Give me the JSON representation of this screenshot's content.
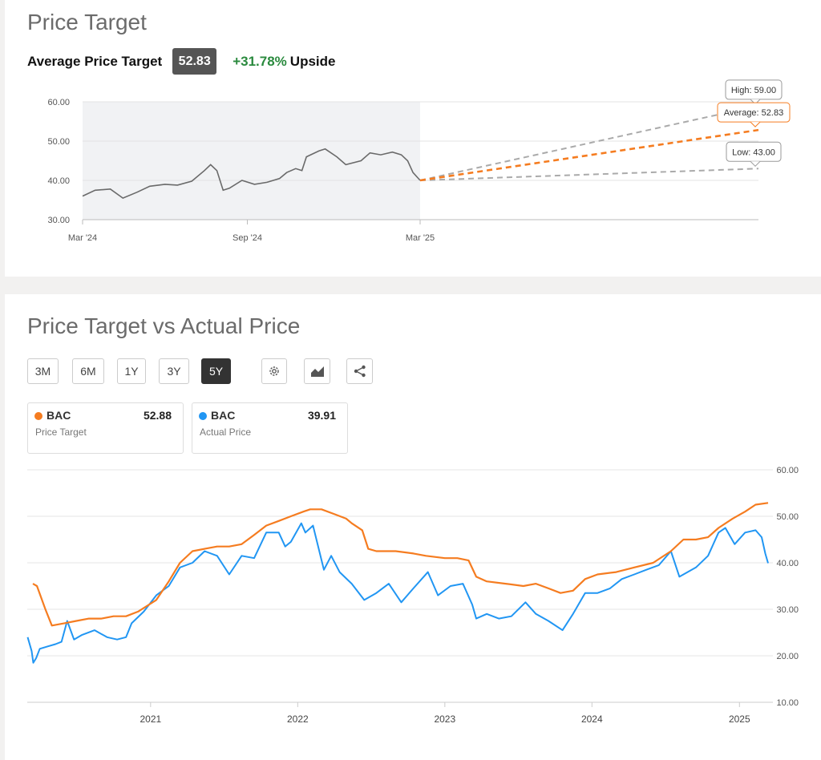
{
  "colors": {
    "orange": "#f57c20",
    "blue": "#2196f3",
    "gray_line": "#6a6a6a",
    "green": "#2a8a3e",
    "projection_gray": "#aaaaaa"
  },
  "price_target_card": {
    "title": "Price Target",
    "average_label": "Average Price Target",
    "average_value": "52.83",
    "upside_pct": "+31.78%",
    "upside_label": "Upside",
    "tooltips": {
      "high": "High: 59.00",
      "average": "Average: 52.83",
      "low": "Low: 43.00"
    }
  },
  "comparison_card": {
    "title": "Price Target vs Actual Price",
    "ranges": [
      {
        "label": "3M",
        "active": false
      },
      {
        "label": "6M",
        "active": false
      },
      {
        "label": "1Y",
        "active": false
      },
      {
        "label": "3Y",
        "active": false
      },
      {
        "label": "5Y",
        "active": true
      }
    ],
    "tools": [
      {
        "icon": "settings-gear-icon"
      },
      {
        "icon": "chart-type-icon"
      },
      {
        "icon": "share-icon"
      }
    ],
    "legend": [
      {
        "ticker": "BAC",
        "value": "52.88",
        "desc": "Price Target",
        "color": "#f57c20"
      },
      {
        "ticker": "BAC",
        "value": "39.91",
        "desc": "Actual Price",
        "color": "#2196f3"
      }
    ]
  },
  "chart_data": [
    {
      "type": "line",
      "x_ticks": [
        "Mar '24",
        "Sep '24",
        "Mar '25"
      ],
      "y_ticks": [
        "60.00",
        "50.00",
        "40.00",
        "30.00"
      ],
      "ylim": [
        30,
        60
      ],
      "grid": true,
      "shaded_history": true,
      "series": [
        {
          "name": "",
          "points": [
            [
              "2024-03-01",
              36.0
            ],
            [
              "2024-03-15",
              37.5
            ],
            [
              "2024-04-01",
              37.8
            ],
            [
              "2024-04-15",
              35.5
            ],
            [
              "2024-05-01",
              37.0
            ],
            [
              "2024-05-15",
              38.5
            ],
            [
              "2024-06-01",
              39.0
            ],
            [
              "2024-06-15",
              38.8
            ],
            [
              "2024-07-01",
              39.8
            ],
            [
              "2024-07-15",
              42.5
            ],
            [
              "2024-07-22",
              44.0
            ],
            [
              "2024-07-29",
              42.5
            ],
            [
              "2024-08-05",
              37.5
            ],
            [
              "2024-08-12",
              38.0
            ],
            [
              "2024-08-26",
              40.0
            ],
            [
              "2024-09-09",
              39.0
            ],
            [
              "2024-09-23",
              39.5
            ],
            [
              "2024-10-07",
              40.5
            ],
            [
              "2024-10-15",
              42.0
            ],
            [
              "2024-10-25",
              43.0
            ],
            [
              "2024-11-01",
              42.5
            ],
            [
              "2024-11-06",
              46.0
            ],
            [
              "2024-11-20",
              47.5
            ],
            [
              "2024-11-27",
              48.0
            ],
            [
              "2024-12-10",
              46.0
            ],
            [
              "2024-12-20",
              44.0
            ],
            [
              "2025-01-06",
              45.0
            ],
            [
              "2025-01-16",
              47.0
            ],
            [
              "2025-01-28",
              46.5
            ],
            [
              "2025-02-10",
              47.2
            ],
            [
              "2025-02-20",
              46.5
            ],
            [
              "2025-02-27",
              45.0
            ],
            [
              "2025-03-05",
              42.0
            ],
            [
              "2025-03-13",
              40.0
            ]
          ]
        },
        {
          "name": "High",
          "points": [
            [
              "2025-03-13",
              40.0
            ],
            [
              "2026-03-13",
              59.0
            ]
          ]
        },
        {
          "name": "Average",
          "points": [
            [
              "2025-03-13",
              40.0
            ],
            [
              "2026-03-13",
              52.83
            ]
          ]
        },
        {
          "name": "Low",
          "points": [
            [
              "2025-03-13",
              40.0
            ],
            [
              "2026-03-13",
              43.0
            ]
          ]
        }
      ]
    },
    {
      "type": "line",
      "x_ticks": [
        "2021",
        "2022",
        "2023",
        "2024",
        "2025"
      ],
      "y_ticks": [
        "60.00",
        "50.00",
        "40.00",
        "30.00",
        "20.00",
        "10.00"
      ],
      "ylim": [
        10,
        60
      ],
      "grid": true,
      "series": [
        {
          "name": "Price Target",
          "points": [
            [
              "2020-03-15",
              35.5
            ],
            [
              "2020-03-25",
              35.0
            ],
            [
              "2020-04-15",
              30.0
            ],
            [
              "2020-05-01",
              26.5
            ],
            [
              "2020-06-01",
              27.0
            ],
            [
              "2020-07-01",
              27.5
            ],
            [
              "2020-08-01",
              28.0
            ],
            [
              "2020-09-01",
              28.0
            ],
            [
              "2020-10-01",
              28.5
            ],
            [
              "2020-11-01",
              28.5
            ],
            [
              "2020-12-01",
              29.5
            ],
            [
              "2021-01-15",
              32.0
            ],
            [
              "2021-02-15",
              36.0
            ],
            [
              "2021-03-15",
              40.0
            ],
            [
              "2021-04-15",
              42.5
            ],
            [
              "2021-05-15",
              43.0
            ],
            [
              "2021-06-15",
              43.5
            ],
            [
              "2021-07-15",
              43.5
            ],
            [
              "2021-08-15",
              44.0
            ],
            [
              "2021-09-15",
              46.0
            ],
            [
              "2021-10-15",
              48.0
            ],
            [
              "2021-11-15",
              49.0
            ],
            [
              "2021-12-15",
              50.0
            ],
            [
              "2022-01-15",
              51.0
            ],
            [
              "2022-02-01",
              51.5
            ],
            [
              "2022-03-01",
              51.5
            ],
            [
              "2022-04-01",
              50.5
            ],
            [
              "2022-05-01",
              49.5
            ],
            [
              "2022-05-15",
              48.5
            ],
            [
              "2022-06-10",
              47.0
            ],
            [
              "2022-06-25",
              43.0
            ],
            [
              "2022-07-15",
              42.5
            ],
            [
              "2022-09-01",
              42.5
            ],
            [
              "2022-10-15",
              42.0
            ],
            [
              "2022-11-15",
              41.5
            ],
            [
              "2023-01-01",
              41.0
            ],
            [
              "2023-02-01",
              41.0
            ],
            [
              "2023-03-01",
              40.5
            ],
            [
              "2023-03-20",
              37.0
            ],
            [
              "2023-04-15",
              36.0
            ],
            [
              "2023-06-01",
              35.5
            ],
            [
              "2023-07-15",
              35.0
            ],
            [
              "2023-08-15",
              35.5
            ],
            [
              "2023-09-15",
              34.5
            ],
            [
              "2023-10-15",
              33.5
            ],
            [
              "2023-11-15",
              34.0
            ],
            [
              "2023-12-15",
              36.5
            ],
            [
              "2024-01-15",
              37.5
            ],
            [
              "2024-03-01",
              38.0
            ],
            [
              "2024-04-15",
              39.0
            ],
            [
              "2024-06-01",
              40.0
            ],
            [
              "2024-07-15",
              42.5
            ],
            [
              "2024-08-15",
              45.0
            ],
            [
              "2024-09-15",
              45.0
            ],
            [
              "2024-10-15",
              45.5
            ],
            [
              "2024-11-10",
              47.5
            ],
            [
              "2024-12-15",
              49.5
            ],
            [
              "2025-01-15",
              51.0
            ],
            [
              "2025-02-10",
              52.5
            ],
            [
              "2025-03-13",
              52.88
            ]
          ]
        },
        {
          "name": "Actual Price",
          "points": [
            [
              "2020-03-02",
              24.0
            ],
            [
              "2020-03-12",
              21.0
            ],
            [
              "2020-03-16",
              18.5
            ],
            [
              "2020-03-23",
              19.5
            ],
            [
              "2020-04-01",
              21.5
            ],
            [
              "2020-04-20",
              22.0
            ],
            [
              "2020-05-10",
              22.5
            ],
            [
              "2020-05-25",
              23.0
            ],
            [
              "2020-06-08",
              27.5
            ],
            [
              "2020-06-25",
              23.5
            ],
            [
              "2020-07-15",
              24.5
            ],
            [
              "2020-08-15",
              25.5
            ],
            [
              "2020-09-15",
              24.0
            ],
            [
              "2020-10-10",
              23.5
            ],
            [
              "2020-11-01",
              24.0
            ],
            [
              "2020-11-15",
              27.0
            ],
            [
              "2020-12-15",
              29.5
            ],
            [
              "2021-01-15",
              33.0
            ],
            [
              "2021-02-15",
              35.0
            ],
            [
              "2021-03-15",
              39.0
            ],
            [
              "2021-04-15",
              40.0
            ],
            [
              "2021-05-15",
              42.5
            ],
            [
              "2021-06-15",
              41.5
            ],
            [
              "2021-07-15",
              37.5
            ],
            [
              "2021-08-15",
              41.5
            ],
            [
              "2021-09-15",
              41.0
            ],
            [
              "2021-10-15",
              46.5
            ],
            [
              "2021-11-15",
              46.5
            ],
            [
              "2021-12-01",
              43.5
            ],
            [
              "2021-12-15",
              44.5
            ],
            [
              "2022-01-10",
              48.5
            ],
            [
              "2022-01-20",
              46.5
            ],
            [
              "2022-02-08",
              48.0
            ],
            [
              "2022-03-07",
              38.5
            ],
            [
              "2022-03-25",
              41.5
            ],
            [
              "2022-04-15",
              38.0
            ],
            [
              "2022-05-15",
              35.5
            ],
            [
              "2022-06-15",
              32.0
            ],
            [
              "2022-07-15",
              33.5
            ],
            [
              "2022-08-15",
              35.5
            ],
            [
              "2022-09-15",
              31.5
            ],
            [
              "2022-10-15",
              34.5
            ],
            [
              "2022-11-20",
              38.0
            ],
            [
              "2022-12-15",
              33.0
            ],
            [
              "2023-01-15",
              35.0
            ],
            [
              "2023-02-15",
              35.5
            ],
            [
              "2023-03-10",
              31.0
            ],
            [
              "2023-03-20",
              28.0
            ],
            [
              "2023-04-15",
              29.0
            ],
            [
              "2023-05-15",
              28.0
            ],
            [
              "2023-06-15",
              28.5
            ],
            [
              "2023-07-20",
              31.5
            ],
            [
              "2023-08-15",
              29.0
            ],
            [
              "2023-09-15",
              27.5
            ],
            [
              "2023-10-20",
              25.5
            ],
            [
              "2023-11-15",
              29.0
            ],
            [
              "2023-12-15",
              33.5
            ],
            [
              "2024-01-15",
              33.5
            ],
            [
              "2024-02-15",
              34.5
            ],
            [
              "2024-03-15",
              36.5
            ],
            [
              "2024-04-15",
              37.5
            ],
            [
              "2024-05-15",
              38.5
            ],
            [
              "2024-06-15",
              39.5
            ],
            [
              "2024-07-15",
              42.5
            ],
            [
              "2024-08-05",
              37.0
            ],
            [
              "2024-09-15",
              39.0
            ],
            [
              "2024-10-15",
              41.5
            ],
            [
              "2024-11-10",
              46.5
            ],
            [
              "2024-11-27",
              47.5
            ],
            [
              "2024-12-20",
              44.0
            ],
            [
              "2025-01-15",
              46.5
            ],
            [
              "2025-02-10",
              47.0
            ],
            [
              "2025-02-25",
              45.5
            ],
            [
              "2025-03-06",
              42.0
            ],
            [
              "2025-03-13",
              39.91
            ]
          ]
        }
      ]
    }
  ]
}
